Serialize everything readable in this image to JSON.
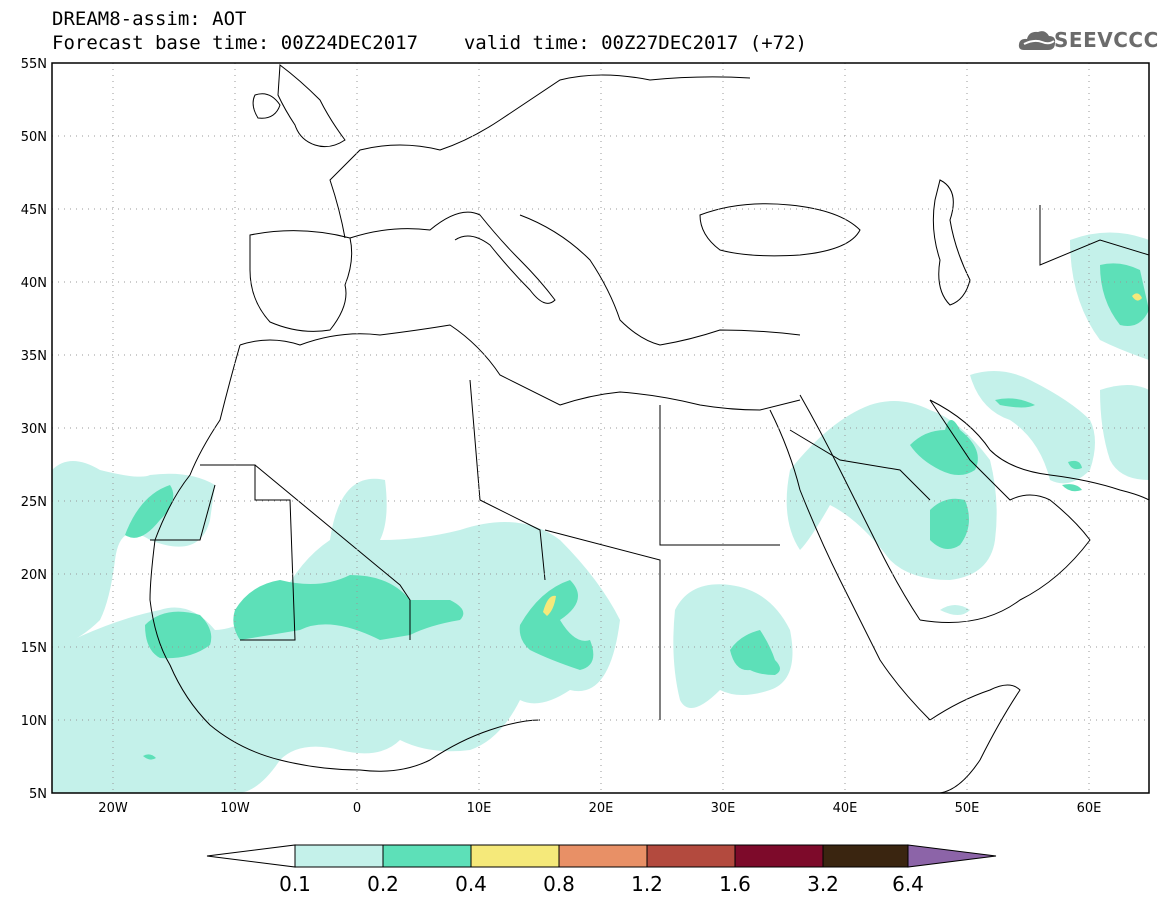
{
  "title": {
    "line1": "DREAM8-assim: AOT",
    "base_label": "Forecast base time: 00Z24DEC2017",
    "valid_label": "valid time: 00Z27DEC2017 (+72)"
  },
  "logo": {
    "text": "SEEVCCC",
    "icon": "cloud-logo-icon"
  },
  "map": {
    "lat_labels": [
      "55N",
      "50N",
      "45N",
      "40N",
      "35N",
      "30N",
      "25N",
      "20N",
      "15N",
      "10N",
      "5N"
    ],
    "lon_labels": [
      "20W",
      "10W",
      "0",
      "10E",
      "20E",
      "30E",
      "40E",
      "50E",
      "60E"
    ],
    "extent": {
      "lon": [
        -25,
        65
      ],
      "lat": [
        5,
        55
      ]
    },
    "gridlines": "dotted"
  },
  "colorbar": {
    "labels": [
      "0.1",
      "0.2",
      "0.4",
      "0.8",
      "1.2",
      "1.6",
      "3.2",
      "6.4"
    ],
    "colors": [
      "#ffffff",
      "#c4f1ea",
      "#5de0b8",
      "#f5e97a",
      "#e89066",
      "#b34a3e",
      "#7d0a2a",
      "#3a2510",
      "#8c64a8"
    ]
  }
}
